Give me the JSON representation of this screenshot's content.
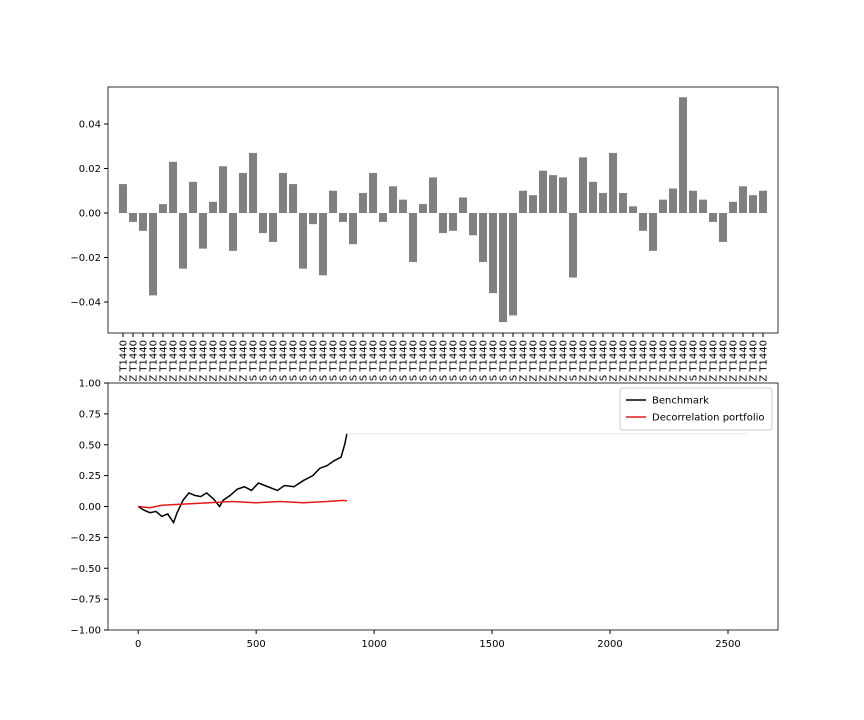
{
  "chart_data": [
    {
      "type": "bar",
      "color": "#808080",
      "categories": [
        "Z T1440",
        "Z T1440",
        "Z T1440",
        "Z T1440",
        "Z T1440",
        "Z T1440",
        "Z T1440",
        "Z T1440",
        "Z T1440",
        "Z T1440",
        "Z T1440",
        "Z T1440",
        "Z T1440",
        "S T1440",
        "S T1440",
        "S T1440",
        "S T1440",
        "S T1440",
        "S T1440",
        "S T1440",
        "S T1440",
        "S T1440",
        "S T1440",
        "S T1440",
        "S T1440",
        "S T1440",
        "S T1440",
        "S T1440",
        "S T1440",
        "S T1440",
        "S T1440",
        "S T1440",
        "S T1440",
        "S T1440",
        "S T1440",
        "S T1440",
        "S T1440",
        "S T1440",
        "S T1440",
        "S T1440",
        "Z T1440",
        "Z T1440",
        "Z T1440",
        "Z T1440",
        "Z T1440",
        "S T1440",
        "Z T1440",
        "Z T1440",
        "S T1440",
        "Z T1440",
        "Z T1440",
        "Z T1440",
        "Z T1440",
        "Z T1440",
        "Z T1440",
        "Z T1440",
        "Z T1440",
        "S T1440",
        "Z T1440",
        "Z T1440",
        "Z T1440",
        "Z T1440",
        "Z T1440",
        "Z T1440",
        "Z T1440"
      ],
      "values": [
        0.013,
        -0.004,
        -0.008,
        -0.037,
        0.004,
        0.023,
        -0.025,
        0.014,
        -0.016,
        0.005,
        0.021,
        -0.017,
        0.018,
        0.027,
        -0.009,
        -0.013,
        0.018,
        0.013,
        -0.025,
        -0.005,
        -0.028,
        0.01,
        -0.004,
        -0.014,
        0.009,
        0.018,
        -0.004,
        0.012,
        0.006,
        -0.022,
        0.004,
        0.016,
        -0.009,
        -0.008,
        0.007,
        -0.01,
        -0.022,
        -0.036,
        -0.049,
        -0.046,
        0.01,
        0.008,
        0.019,
        0.017,
        0.016,
        -0.029,
        0.025,
        0.014,
        0.009,
        0.027,
        0.009,
        0.003,
        -0.008,
        -0.017,
        0.006,
        0.011,
        0.052,
        0.01,
        0.006,
        -0.004,
        -0.013,
        0.005,
        0.012,
        0.008,
        0.01
      ],
      "ylim": [
        -0.0539,
        0.0566
      ],
      "yticks": [
        {
          "value": -0.04,
          "label": "−0.04"
        },
        {
          "value": -0.02,
          "label": "−0.02"
        },
        {
          "value": 0,
          "label": "0.00"
        },
        {
          "value": 0.02,
          "label": "0.02"
        },
        {
          "value": 0.04,
          "label": "0.04"
        }
      ]
    },
    {
      "type": "line",
      "legend": "upper right",
      "xlim": [
        -128,
        2712
      ],
      "ylim": [
        -1,
        1
      ],
      "xticks": [
        0,
        500,
        1000,
        1500,
        2000,
        2500
      ],
      "yticks": [
        {
          "value": -1,
          "label": "−1.00"
        },
        {
          "value": -0.75,
          "label": "−0.75"
        },
        {
          "value": -0.5,
          "label": "−0.50"
        },
        {
          "value": -0.25,
          "label": "−0.25"
        },
        {
          "value": 0,
          "label": "0.00"
        },
        {
          "value": 0.25,
          "label": "0.25"
        },
        {
          "value": 0.5,
          "label": "0.50"
        },
        {
          "value": 0.75,
          "label": "0.75"
        },
        {
          "value": 1,
          "label": "1.00"
        }
      ],
      "series": [
        {
          "name": "Benchmark",
          "color": "#000000",
          "x": [
            0,
            25,
            50,
            75,
            100,
            125,
            150,
            165,
            190,
            215,
            240,
            265,
            290,
            320,
            345,
            360,
            390,
            420,
            450,
            480,
            510,
            550,
            590,
            620,
            660,
            700,
            740,
            770,
            800,
            830,
            860,
            875,
            885
          ],
          "values": [
            0,
            -0.03,
            -0.05,
            -0.04,
            -0.08,
            -0.06,
            -0.13,
            -0.05,
            0.05,
            0.11,
            0.09,
            0.08,
            0.11,
            0.06,
            0,
            0.05,
            0.09,
            0.14,
            0.16,
            0.13,
            0.19,
            0.16,
            0.13,
            0.17,
            0.16,
            0.21,
            0.25,
            0.31,
            0.33,
            0.37,
            0.4,
            0.5,
            0.59
          ]
        },
        {
          "name": "Decorrelation portfolio",
          "color": "#e31a1c",
          "x": [
            0,
            50,
            100,
            200,
            300,
            400,
            500,
            600,
            700,
            800,
            870,
            885
          ],
          "values": [
            0,
            -0.01,
            0.01,
            0.02,
            0.03,
            0.04,
            0.03,
            0.04,
            0.03,
            0.04,
            0.05,
            0.045
          ]
        },
        {
          "color": "#eeeeee",
          "x": [
            885,
            2580
          ],
          "values": [
            0.59,
            0.59
          ]
        }
      ]
    }
  ]
}
